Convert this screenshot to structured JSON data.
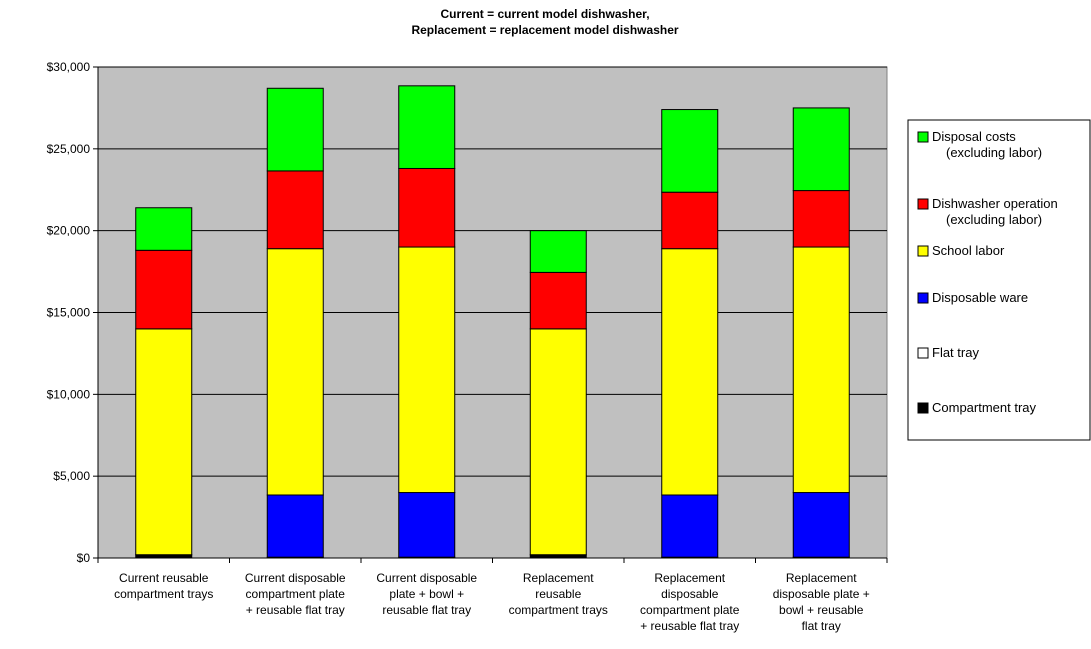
{
  "chart_data": {
    "type": "bar",
    "stacked": true,
    "title": [
      "Current = current model dishwasher,",
      "Replacement = replacement model dishwasher"
    ],
    "categories": [
      [
        "Current reusable",
        "compartment trays"
      ],
      [
        "Current disposable",
        "compartment plate",
        "+ reusable flat tray"
      ],
      [
        "Current disposable",
        "plate + bowl +",
        "reusable flat tray"
      ],
      [
        "Replacement",
        "reusable",
        "compartment trays"
      ],
      [
        "Replacement",
        "disposable",
        "compartment plate",
        "+ reusable flat tray"
      ],
      [
        "Replacement",
        "disposable plate +",
        "bowl + reusable",
        "flat tray"
      ]
    ],
    "series": [
      {
        "name": "Compartment tray",
        "legend_lines": [
          "Compartment tray"
        ],
        "color": "#000000",
        "values": [
          200,
          0,
          0,
          200,
          0,
          0
        ]
      },
      {
        "name": "Flat tray",
        "legend_lines": [
          "Flat tray"
        ],
        "color": "#ffffff",
        "values": [
          0,
          50,
          50,
          0,
          50,
          50
        ]
      },
      {
        "name": "Disposable ware",
        "legend_lines": [
          "Disposable ware"
        ],
        "color": "#0000ff",
        "values": [
          0,
          3800,
          3950,
          0,
          3800,
          3950
        ]
      },
      {
        "name": "School labor",
        "legend_lines": [
          "School labor"
        ],
        "color": "#ffff00",
        "values": [
          13800,
          15050,
          15000,
          13800,
          15050,
          15000
        ]
      },
      {
        "name": "Dishwasher operation (excluding labor)",
        "legend_lines": [
          "Dishwasher operation",
          "(excluding labor)"
        ],
        "color": "#ff0000",
        "values": [
          4800,
          4750,
          4800,
          3450,
          3450,
          3450
        ]
      },
      {
        "name": "Disposal costs (excluding labor)",
        "legend_lines": [
          "Disposal costs",
          "(excluding labor)"
        ],
        "color": "#00ff00",
        "values": [
          2600,
          5050,
          5050,
          2550,
          5050,
          5050
        ]
      }
    ],
    "yticks": [
      "$0",
      "$5,000",
      "$10,000",
      "$15,000",
      "$20,000",
      "$25,000",
      "$30,000"
    ],
    "ylim": [
      0,
      30000
    ],
    "ytick_step": 5000,
    "xlabel": "",
    "ylabel": "",
    "grid": true,
    "plot_background": "#c0c0c0",
    "legend_position": "right"
  }
}
